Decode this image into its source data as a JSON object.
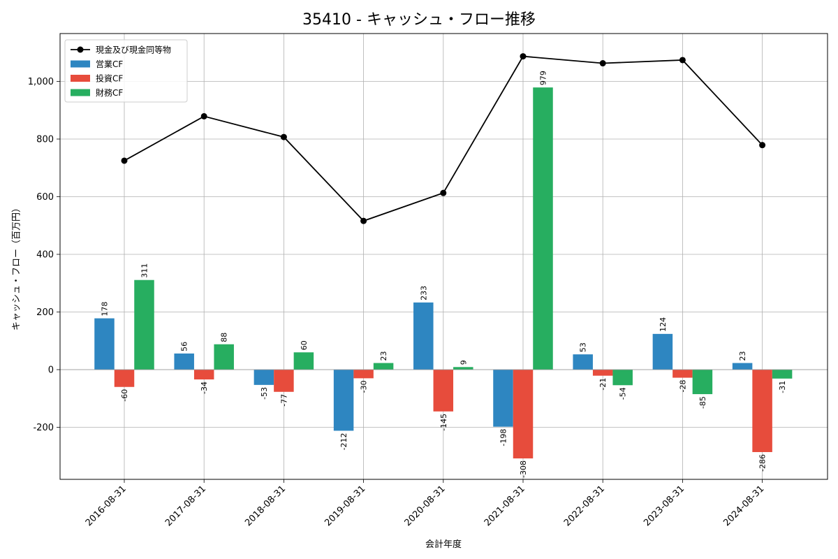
{
  "chart_data": {
    "type": "bar",
    "title": "35410 - キャッシュ・フロー推移",
    "xlabel": "会計年度",
    "ylabel": "キャッシュ・フロー（百万円）",
    "categories": [
      "2016-08-31",
      "2017-08-31",
      "2018-08-31",
      "2019-08-31",
      "2020-08-31",
      "2021-08-31",
      "2022-08-31",
      "2023-08-31",
      "2024-08-31"
    ],
    "series": [
      {
        "name": "営業CF",
        "type": "bar",
        "color": "#2e86c1",
        "values": [
          178,
          56,
          -53,
          -212,
          233,
          -198,
          53,
          124,
          23
        ]
      },
      {
        "name": "投資CF",
        "type": "bar",
        "color": "#e74c3c",
        "values": [
          -60,
          -34,
          -77,
          -30,
          -145,
          -308,
          -21,
          -28,
          -286
        ]
      },
      {
        "name": "財務CF",
        "type": "bar",
        "color": "#27ae60",
        "values": [
          311,
          88,
          60,
          23,
          9,
          979,
          -54,
          -85,
          -31
        ]
      },
      {
        "name": "現金及び現金同等物",
        "type": "line",
        "color": "#000000",
        "values": [
          725,
          879,
          807,
          516,
          613,
          1087,
          1063,
          1074,
          779
        ]
      }
    ],
    "yticks": [
      -200,
      0,
      200,
      400,
      600,
      800,
      1000
    ],
    "ytick_labels": [
      "-200",
      "0",
      "200",
      "400",
      "600",
      "800",
      "1,000"
    ],
    "ylim": [
      -380,
      1150
    ],
    "grid": true,
    "legend_position": "top-left"
  }
}
